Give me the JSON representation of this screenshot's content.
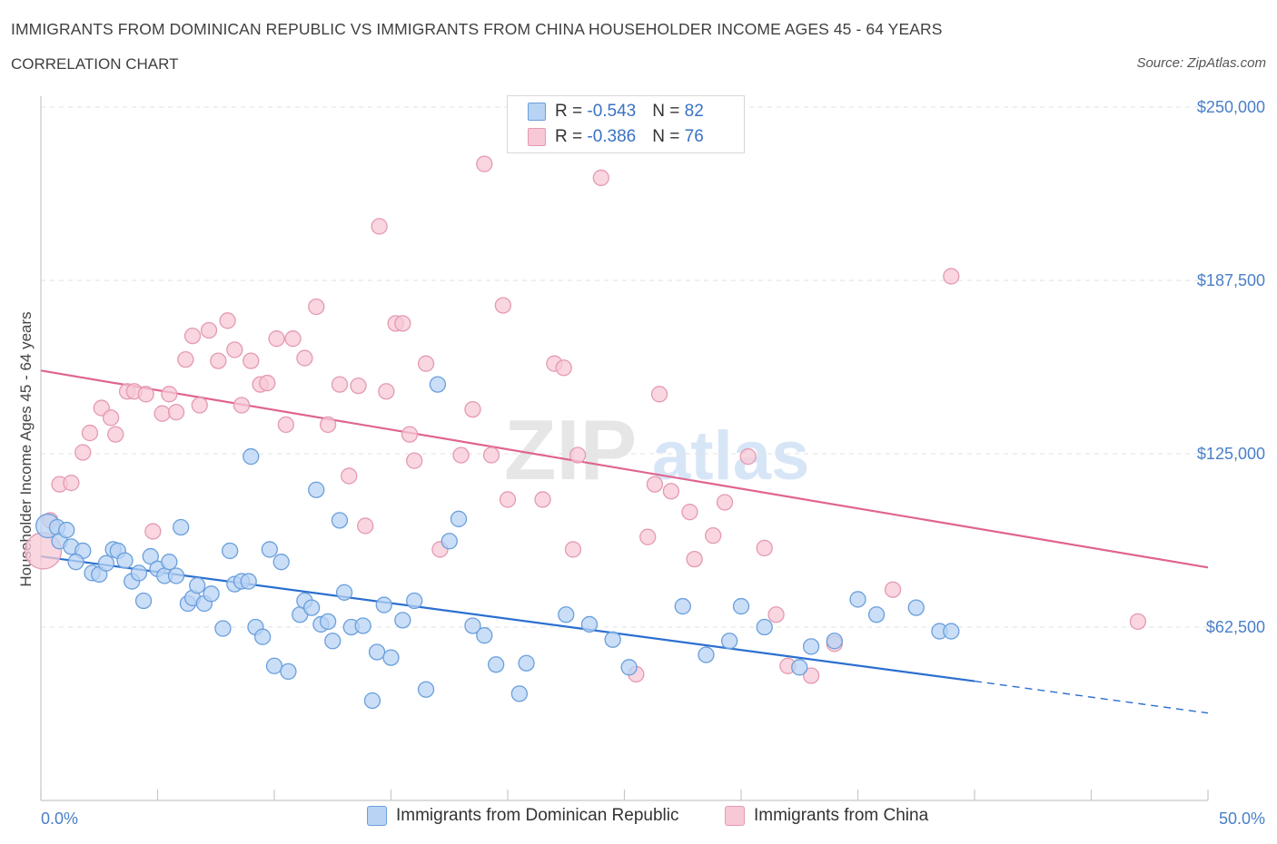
{
  "header": {
    "title": "IMMIGRANTS FROM DOMINICAN REPUBLIC VS IMMIGRANTS FROM CHINA HOUSEHOLDER INCOME AGES 45 - 64 YEARS",
    "subtitle": "CORRELATION CHART",
    "source": "Source: ZipAtlas.com"
  },
  "colors": {
    "blue_fill": "#b8d3f4",
    "blue_stroke": "#6a9fdc",
    "blue_line": "#2b6fd0",
    "pink_fill": "#f7c8d6",
    "pink_stroke": "#e59ab2",
    "pink_line": "#e0648e",
    "grid": "#e2e2e2",
    "tick_text": "#4a7fc9"
  },
  "legend": {
    "series1": {
      "r_label": "R = ",
      "r_value": "-0.543",
      "n_label": "N = ",
      "n_value": "82"
    },
    "series2": {
      "r_label": "R = ",
      "r_value": "-0.386",
      "n_label": "N = ",
      "n_value": "76"
    }
  },
  "bottom_legend": {
    "series1": "Immigrants from Dominican Republic",
    "series2": "Immigrants from China"
  },
  "watermark": {
    "zip": "ZIP",
    "atlas": "atlas"
  },
  "chart_data": {
    "type": "scatter",
    "title": "IMMIGRANTS FROM DOMINICAN REPUBLIC VS IMMIGRANTS FROM CHINA HOUSEHOLDER INCOME AGES 45 - 64 YEARS",
    "ylabel": "Householder Income Ages 45 - 64 years",
    "xlim": [
      0,
      50
    ],
    "ylim": [
      0,
      250000
    ],
    "x_tick_labels": [
      "0.0%",
      "50.0%"
    ],
    "y_ticks": [
      62500,
      125000,
      187500,
      250000
    ],
    "y_tick_labels": [
      "$62,500",
      "$125,000",
      "$187,500",
      "$250,000"
    ],
    "grid": true,
    "series": [
      {
        "name": "Immigrants from Dominican Republic",
        "color": "#6a9fdc",
        "trend": {
          "x": [
            0,
            40,
            50
          ],
          "y": [
            88000,
            43000,
            31500
          ],
          "solid_until": 40
        },
        "points": [
          [
            0.3,
            99000
          ],
          [
            0.7,
            98500
          ],
          [
            0.8,
            93500
          ],
          [
            1.1,
            97500
          ],
          [
            1.3,
            91500
          ],
          [
            1.8,
            90000
          ],
          [
            1.5,
            86000
          ],
          [
            2.2,
            82000
          ],
          [
            2.5,
            81500
          ],
          [
            2.8,
            85500
          ],
          [
            3.1,
            90500
          ],
          [
            3.3,
            90000
          ],
          [
            3.6,
            86500
          ],
          [
            3.9,
            79000
          ],
          [
            4.2,
            82000
          ],
          [
            4.4,
            72000
          ],
          [
            4.7,
            88000
          ],
          [
            5.0,
            83500
          ],
          [
            5.3,
            81000
          ],
          [
            5.5,
            86000
          ],
          [
            5.8,
            81000
          ],
          [
            6.0,
            98500
          ],
          [
            6.3,
            71000
          ],
          [
            6.5,
            73000
          ],
          [
            6.7,
            77500
          ],
          [
            7.0,
            71000
          ],
          [
            7.3,
            74500
          ],
          [
            7.8,
            62000
          ],
          [
            8.1,
            90000
          ],
          [
            8.3,
            78000
          ],
          [
            8.6,
            79000
          ],
          [
            8.9,
            79000
          ],
          [
            9.2,
            62500
          ],
          [
            9.5,
            59000
          ],
          [
            9.0,
            124000
          ],
          [
            9.8,
            90500
          ],
          [
            10.0,
            48500
          ],
          [
            10.3,
            86000
          ],
          [
            10.6,
            46500
          ],
          [
            11.1,
            67000
          ],
          [
            11.3,
            72000
          ],
          [
            11.6,
            69500
          ],
          [
            11.8,
            112000
          ],
          [
            12.0,
            63500
          ],
          [
            12.3,
            64500
          ],
          [
            12.5,
            57500
          ],
          [
            12.8,
            101000
          ],
          [
            13.0,
            75000
          ],
          [
            13.3,
            62500
          ],
          [
            13.8,
            63000
          ],
          [
            14.2,
            36000
          ],
          [
            14.4,
            53500
          ],
          [
            14.7,
            70500
          ],
          [
            15.0,
            51500
          ],
          [
            15.5,
            65000
          ],
          [
            16.0,
            72000
          ],
          [
            16.5,
            40000
          ],
          [
            17.0,
            150000
          ],
          [
            17.5,
            93500
          ],
          [
            17.9,
            101500
          ],
          [
            18.5,
            63000
          ],
          [
            19.0,
            59500
          ],
          [
            19.5,
            49000
          ],
          [
            20.5,
            38500
          ],
          [
            20.8,
            49500
          ],
          [
            22.5,
            67000
          ],
          [
            23.5,
            63500
          ],
          [
            24.5,
            58000
          ],
          [
            25.2,
            48000
          ],
          [
            27.5,
            70000
          ],
          [
            28.5,
            52500
          ],
          [
            30.0,
            70000
          ],
          [
            29.5,
            57500
          ],
          [
            31.0,
            62500
          ],
          [
            32.5,
            48000
          ],
          [
            33.0,
            55500
          ],
          [
            34.0,
            57500
          ],
          [
            35.0,
            72500
          ],
          [
            35.8,
            67000
          ],
          [
            37.5,
            69500
          ],
          [
            38.5,
            61000
          ],
          [
            39.0,
            61000
          ]
        ]
      },
      {
        "name": "Immigrants from China",
        "color": "#e59ab2",
        "trend": {
          "x": [
            0,
            50
          ],
          "y": [
            155000,
            84000
          ]
        },
        "points": [
          [
            0.1,
            90000
          ],
          [
            0.4,
            101000
          ],
          [
            0.8,
            114000
          ],
          [
            1.3,
            114500
          ],
          [
            1.8,
            125500
          ],
          [
            2.1,
            132500
          ],
          [
            2.6,
            141500
          ],
          [
            3.0,
            138000
          ],
          [
            3.2,
            132000
          ],
          [
            3.7,
            147500
          ],
          [
            4.0,
            147500
          ],
          [
            4.5,
            146500
          ],
          [
            4.8,
            97000
          ],
          [
            5.2,
            139500
          ],
          [
            5.5,
            146500
          ],
          [
            5.8,
            140000
          ],
          [
            6.2,
            159000
          ],
          [
            6.5,
            167500
          ],
          [
            6.8,
            142500
          ],
          [
            7.2,
            169500
          ],
          [
            7.6,
            158500
          ],
          [
            8.0,
            173000
          ],
          [
            8.3,
            162500
          ],
          [
            8.6,
            142500
          ],
          [
            9.0,
            158500
          ],
          [
            9.4,
            150000
          ],
          [
            9.7,
            150500
          ],
          [
            10.1,
            166500
          ],
          [
            10.5,
            135500
          ],
          [
            10.8,
            166500
          ],
          [
            11.3,
            159500
          ],
          [
            11.8,
            178000
          ],
          [
            12.3,
            135500
          ],
          [
            12.8,
            150000
          ],
          [
            13.2,
            117000
          ],
          [
            13.6,
            149500
          ],
          [
            13.9,
            99000
          ],
          [
            14.5,
            207000
          ],
          [
            14.8,
            147500
          ],
          [
            15.2,
            172000
          ],
          [
            15.5,
            172000
          ],
          [
            15.8,
            132000
          ],
          [
            16.0,
            122500
          ],
          [
            16.5,
            157500
          ],
          [
            17.1,
            90500
          ],
          [
            18.0,
            124500
          ],
          [
            18.5,
            141000
          ],
          [
            19.0,
            229500
          ],
          [
            19.3,
            124500
          ],
          [
            19.8,
            178500
          ],
          [
            20.0,
            108500
          ],
          [
            21.0,
            245000
          ],
          [
            21.5,
            108500
          ],
          [
            22.0,
            157500
          ],
          [
            22.4,
            156000
          ],
          [
            23.0,
            124500
          ],
          [
            22.8,
            90500
          ],
          [
            24.0,
            224500
          ],
          [
            25.5,
            45500
          ],
          [
            26.0,
            95000
          ],
          [
            26.5,
            146500
          ],
          [
            26.3,
            114000
          ],
          [
            27.0,
            111500
          ],
          [
            27.8,
            104000
          ],
          [
            28.0,
            87000
          ],
          [
            28.8,
            95500
          ],
          [
            29.3,
            107500
          ],
          [
            30.3,
            124000
          ],
          [
            31.0,
            91000
          ],
          [
            31.5,
            67000
          ],
          [
            32.0,
            48500
          ],
          [
            33.0,
            45000
          ],
          [
            34.0,
            56500
          ],
          [
            36.5,
            76000
          ],
          [
            39.0,
            189000
          ],
          [
            47.0,
            64500
          ]
        ]
      }
    ]
  }
}
